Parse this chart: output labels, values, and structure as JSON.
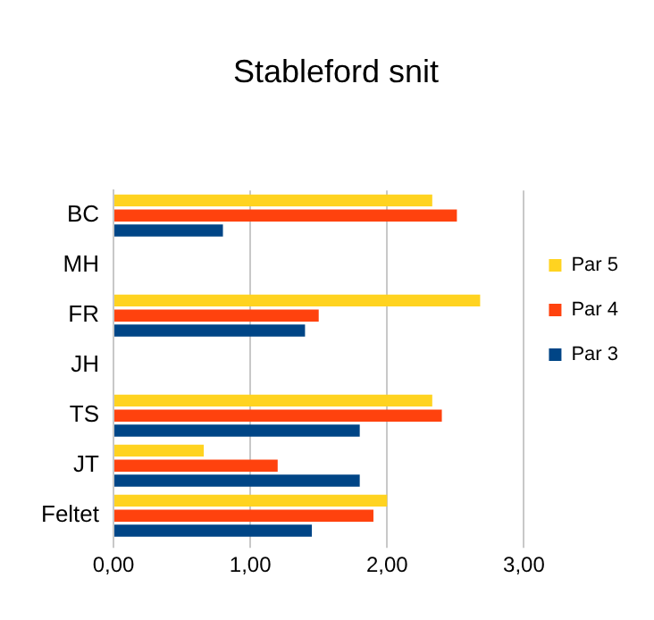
{
  "chart_data": {
    "type": "bar",
    "orientation": "horizontal",
    "title": "Stableford snit",
    "categories": [
      "BC",
      "MH",
      "FR",
      "JH",
      "TS",
      "JT",
      "Feltet"
    ],
    "series": [
      {
        "name": "Par 5",
        "color": "#ffd320",
        "values": [
          2.33,
          null,
          2.68,
          null,
          2.33,
          0.66,
          2.0
        ]
      },
      {
        "name": "Par 4",
        "color": "#ff420e",
        "values": [
          2.51,
          null,
          1.5,
          null,
          2.4,
          1.2,
          1.9
        ]
      },
      {
        "name": "Par 3",
        "color": "#004586",
        "values": [
          0.8,
          null,
          1.4,
          null,
          1.8,
          1.8,
          1.45
        ]
      }
    ],
    "xlim": [
      0,
      3
    ],
    "xticks": [
      {
        "value": 0,
        "label": "0,00"
      },
      {
        "value": 1,
        "label": "1,00"
      },
      {
        "value": 2,
        "label": "2,00"
      },
      {
        "value": 3,
        "label": "3,00"
      }
    ],
    "grid": "x",
    "legend": "right"
  }
}
